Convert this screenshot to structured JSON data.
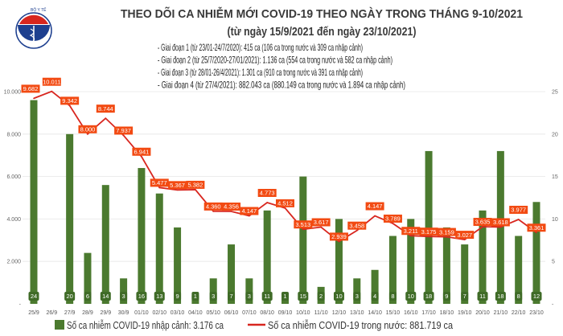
{
  "logo": {
    "text": "BỘ Y TẾ",
    "subtext": "MINISTRY OF HEALTH"
  },
  "title": "THEO DÕI CA NHIỄM MỚI COVID-19 THEO NGÀY TRONG THÁNG 9-10/2021",
  "subtitle": "(từ ngày 15/9/2021 đến ngày 23/10/2021)",
  "notes": [
    "- Giai đoạn 1 (từ 23/01-24/7/2020): 415 ca (106 ca trong nước và 309 ca nhập cảnh)",
    "- Giai đoạn 2 (từ 25/7/2020-27/01/2021): 1.136 ca (554 ca trong nước và 582 ca nhập cảnh)",
    "- Giai đoạn 3 (từ 28/01-26/4/2021): 1.301 ca (910 ca trong nước và 391 ca nhập cảnh)",
    "- Giai đoạn 4 (từ 27/4/2021): 882.043 ca (880.149 ca trong nước và 1.894 ca nhập cảnh)"
  ],
  "chart_data": {
    "type": "bar+line",
    "categories": [
      "25/9",
      "26/9",
      "27/9",
      "28/9",
      "29/9",
      "30/9",
      "01/10",
      "02/10",
      "03/10",
      "04/10",
      "05/10",
      "06/10",
      "07/10",
      "08/10",
      "09/10",
      "10/10",
      "11/10",
      "12/10",
      "13/10",
      "14/10",
      "15/10",
      "16/10",
      "17/10",
      "18/10",
      "19/10",
      "20/10",
      "21/10",
      "22/10",
      "23/10"
    ],
    "series": [
      {
        "name": "Số ca nhiễm COVID-19 nhập cảnh: 3.176 ca",
        "type": "bar",
        "axis": "right",
        "color": "#4b7a2f",
        "values": [
          24,
          0,
          20,
          6,
          14,
          3,
          16,
          13,
          9,
          1,
          3,
          7,
          3,
          11,
          1,
          15,
          2,
          10,
          3,
          4,
          8,
          10,
          18,
          9,
          7,
          11,
          18,
          8,
          12
        ]
      },
      {
        "name": "Số ca nhiễm COVID-19 trong nước: 881.719 ca",
        "type": "line",
        "axis": "left",
        "color": "#d8261f",
        "values": [
          9682,
          10011,
          9342,
          8000,
          8744,
          7937,
          6941,
          5477,
          5367,
          5382,
          4360,
          4356,
          4147,
          4773,
          4512,
          3513,
          3617,
          2939,
          3458,
          4147,
          3789,
          3211,
          3175,
          3159,
          3027,
          3635,
          3618,
          3977,
          3361
        ],
        "labels": [
          "9.682",
          "10.011",
          "9.342",
          "8.000",
          "8.744",
          "7.937",
          "6.941",
          "5.477",
          "5.367",
          "5.382",
          "4.360",
          "4.356",
          "4.147",
          "4.773",
          "4.512",
          "3.513",
          "3.617",
          "2.939",
          "3.458",
          "4.147",
          "3.789",
          "3.211",
          "3.175",
          "3.159",
          "3.027",
          "3.635",
          "3.618",
          "3.977",
          "3.361"
        ]
      }
    ],
    "left_axis": {
      "range": [
        0,
        10000
      ],
      "ticks": [
        "-",
        "2.000",
        "4.000",
        "6.000",
        "8.000",
        "10.000"
      ]
    },
    "right_axis": {
      "range": [
        0,
        25
      ],
      "ticks": [
        "-",
        "5",
        "10",
        "15",
        "20",
        "25"
      ]
    },
    "grid": true,
    "legend": "bottom",
    "label_color": "#f24a12"
  }
}
